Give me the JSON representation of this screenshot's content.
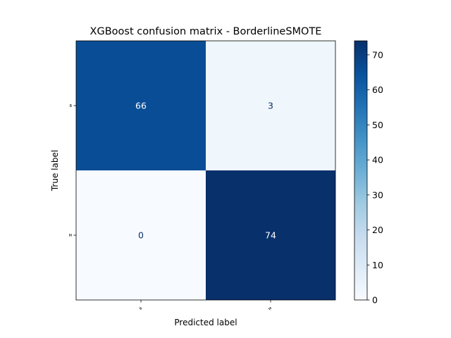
{
  "chart_data": {
    "type": "heatmap",
    "title": "XGBoost confusion matrix - BorderlineSMOTE",
    "xlabel": "Predicted label",
    "ylabel": "True label",
    "x_categories": [
      "B",
      "M"
    ],
    "y_categories": [
      "B",
      "M"
    ],
    "values": [
      [
        66,
        3
      ],
      [
        0,
        74
      ]
    ],
    "colormap": "Blues",
    "colorbar": {
      "range": [
        0,
        74
      ],
      "ticks": [
        0,
        10,
        20,
        30,
        40,
        50,
        60,
        70
      ]
    },
    "grid": false
  }
}
